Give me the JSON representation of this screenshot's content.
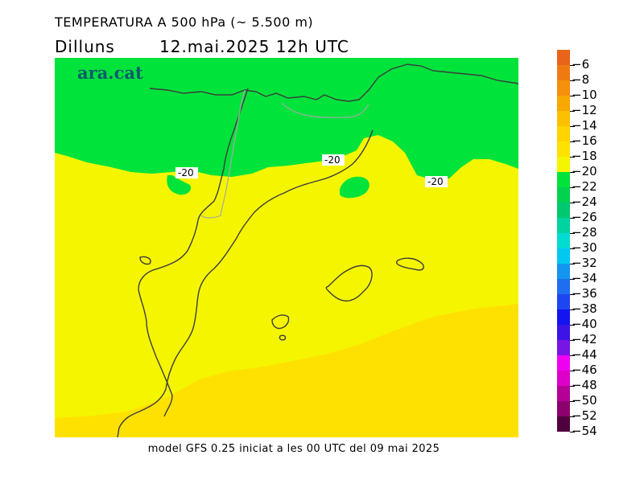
{
  "header": {
    "title": "TEMPERATURA A 500 hPa (~ 5.500 m)",
    "day": "Dilluns",
    "datetime": "12.mai.2025 12h UTC"
  },
  "map": {
    "brand": "ara.cat",
    "isotherm_labels": [
      "-20",
      "-20",
      "-20"
    ],
    "fill_colors": {
      "green": "#00e33b",
      "yellow": "#f5f500",
      "gold": "#ffe100"
    }
  },
  "footer": {
    "model_text": "model GFS 0.25 iniciat a les 00 UTC del 09 mai 2025"
  },
  "colorbar": {
    "levels": [
      {
        "label": "−6",
        "color": "#e9641a"
      },
      {
        "label": "−8",
        "color": "#f07a12"
      },
      {
        "label": "−10",
        "color": "#f4900c"
      },
      {
        "label": "−12",
        "color": "#f8a800"
      },
      {
        "label": "−14",
        "color": "#fbc000"
      },
      {
        "label": "−16",
        "color": "#ffd400"
      },
      {
        "label": "−18",
        "color": "#ffe100"
      },
      {
        "label": "−20",
        "color": "#f5f500"
      },
      {
        "label": "−22",
        "color": "#00e33b"
      },
      {
        "label": "−24",
        "color": "#00d250"
      },
      {
        "label": "−26",
        "color": "#00c86e"
      },
      {
        "label": "−28",
        "color": "#00d2a0"
      },
      {
        "label": "−30",
        "color": "#00dcd2"
      },
      {
        "label": "−32",
        "color": "#00c8f0"
      },
      {
        "label": "−34",
        "color": "#1496f0"
      },
      {
        "label": "−36",
        "color": "#1e6ef0"
      },
      {
        "label": "−38",
        "color": "#1e46f0"
      },
      {
        "label": "−40",
        "color": "#1414f0"
      },
      {
        "label": "−42",
        "color": "#3c14e6"
      },
      {
        "label": "−44",
        "color": "#7814e6"
      },
      {
        "label": "−46",
        "color": "#f000f0"
      },
      {
        "label": "−48",
        "color": "#dc00c8"
      },
      {
        "label": "−50",
        "color": "#b40096"
      },
      {
        "label": "−52",
        "color": "#8c006e"
      },
      {
        "label": "−54",
        "color": "#50003c"
      }
    ]
  }
}
